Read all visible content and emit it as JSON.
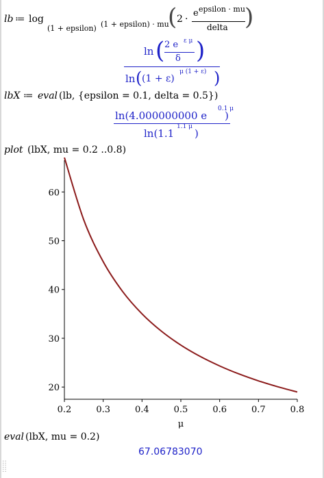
{
  "line1": {
    "lhs": "lb",
    "assign": "≔",
    "log": "log",
    "base_sub": "(1 + epsilon)",
    "arg_prefix": "(1 + epsilon) · mu",
    "two": "2",
    "dot": "·",
    "exp_base": "e",
    "exp_sup": "epsilon · mu",
    "delta": "delta"
  },
  "output1": {
    "ln": "ln",
    "two_e": "2 e",
    "e_sup": "ε μ",
    "delta": "δ",
    "den_ln": "ln",
    "den_inner": "(1 + ε)",
    "den_sup": "μ (1 + ε)"
  },
  "line2": {
    "text_lhs": "lbX",
    "assign": "≔",
    "fn": "eval",
    "args": "(lb, {epsilon = 0.1, delta = 0.5})"
  },
  "output2": {
    "num": "ln(4.000000000 e",
    "num_sup": "0.1 μ",
    "num_close": ")",
    "den": "ln(1.1",
    "den_sup": "1.1 μ",
    "den_close": ")"
  },
  "line3": {
    "fn": "plot",
    "args": "(lbX, mu = 0.2 ..0.8)"
  },
  "chart_data": {
    "type": "line",
    "series": [
      {
        "x": [
          0.2,
          0.25,
          0.3,
          0.35,
          0.4,
          0.45,
          0.5,
          0.55,
          0.6,
          0.65,
          0.7,
          0.75,
          0.8
        ],
        "values": [
          67.07,
          54.25,
          45.7,
          39.59,
          35.01,
          31.45,
          28.6,
          26.27,
          24.33,
          22.68,
          21.27,
          20.05,
          18.98
        ],
        "color": "#8b1a1a"
      }
    ],
    "xlim": [
      0.2,
      0.8
    ],
    "ylim": [
      17.5,
      66.5
    ],
    "xticks": [
      "0.2",
      "0.3",
      "0.4",
      "0.5",
      "0.6",
      "0.7",
      "0.8"
    ],
    "yticks": [
      "20",
      "30",
      "40",
      "50",
      "60"
    ],
    "xlabel": "μ",
    "ylabel": "",
    "title": ""
  },
  "line4": {
    "fn": "eval",
    "args": "(lbX, mu = 0.2)"
  },
  "output4": {
    "value": "67.06783070"
  }
}
